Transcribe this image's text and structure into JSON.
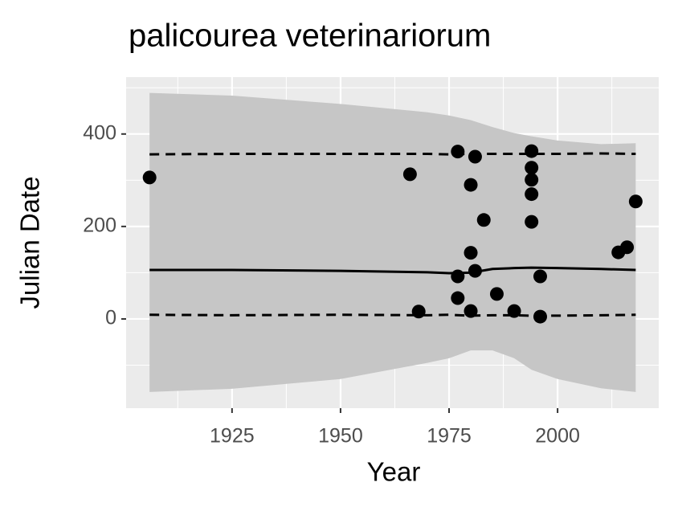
{
  "chart_data": {
    "type": "scatter",
    "title": "palicourea veterinariorum",
    "x_label": "Year",
    "y_label": "Julian Date",
    "xlim": [
      1900.6,
      2023.3
    ],
    "ylim": [
      -193,
      523
    ],
    "xticks": [
      1925,
      1950,
      1975,
      2000
    ],
    "yticks": [
      0,
      200,
      400
    ],
    "grid": true,
    "points": {
      "color": "#000000",
      "x": [
        1906,
        1966,
        1968,
        1977,
        1977,
        1977,
        1981,
        1980,
        1980,
        1981,
        1980,
        1983,
        1986,
        1990,
        1994,
        1994,
        1994,
        1994,
        1994,
        1996,
        1996,
        2014,
        2016,
        2018
      ],
      "y": [
        306,
        313,
        16,
        362,
        92,
        45,
        351,
        290,
        143,
        104,
        17,
        214,
        54,
        17,
        363,
        327,
        301,
        270,
        210,
        92,
        5,
        144,
        155,
        254
      ]
    },
    "fit_x": [
      1906,
      1925,
      1950,
      1970,
      1975,
      1980,
      1985,
      1990,
      1994,
      2000,
      2010,
      2018
    ],
    "lines": [
      {
        "color": "#000000",
        "dashed": false,
        "values": [
          106,
          106,
          104,
          101,
          99,
          100,
          108,
          110,
          111,
          110,
          108,
          106
        ]
      },
      {
        "color": "#000000",
        "dashed": true,
        "values": [
          356,
          357,
          357,
          357,
          356,
          357,
          357,
          357,
          357,
          357,
          358,
          357
        ]
      },
      {
        "color": "#000000",
        "dashed": true,
        "values": [
          9,
          8,
          9,
          8,
          9,
          7,
          8,
          8,
          7,
          7,
          8,
          9
        ]
      }
    ],
    "ribbon": {
      "color": "#c6c6c6",
      "upper": [
        489,
        483,
        465,
        447,
        440,
        430,
        415,
        402,
        395,
        386,
        378,
        380
      ],
      "lower": [
        -158,
        -151,
        -130,
        -95,
        -85,
        -68,
        -68,
        -85,
        -110,
        -130,
        -150,
        -158
      ]
    }
  }
}
